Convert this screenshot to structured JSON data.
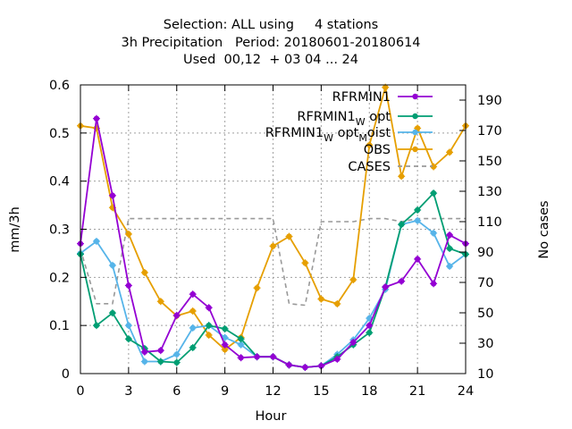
{
  "chart_data": {
    "type": "line",
    "title_lines": [
      "Selection: ALL using     4 stations",
      "3h Precipitation   Period: 20180601-20180614",
      "Used  00,12  + 03 04 ... 24"
    ],
    "xlabel": "Hour",
    "ylabel": "mm/3h",
    "y2label": "No cases",
    "xlim": [
      0,
      24
    ],
    "ylim": [
      0,
      0.6
    ],
    "y2lim": [
      10,
      200
    ],
    "x_ticks": [
      0,
      3,
      6,
      9,
      12,
      15,
      18,
      21,
      24
    ],
    "y_ticks": [
      "0",
      "0.1",
      "0.2",
      "0.3",
      "0.4",
      "0.5",
      "0.6"
    ],
    "y2_ticks": [
      "10",
      "30",
      "50",
      "70",
      "90",
      "110",
      "130",
      "150",
      "170",
      "190"
    ],
    "grid": true,
    "legend_position": "top-right",
    "x": [
      0,
      1,
      2,
      3,
      4,
      5,
      6,
      7,
      8,
      9,
      10,
      11,
      12,
      13,
      14,
      15,
      16,
      17,
      18,
      19,
      20,
      21,
      22,
      23,
      24
    ],
    "series": [
      {
        "name": "RFRMIN1",
        "legend_sub": "",
        "legend_tail": "",
        "color": "#9400d3",
        "axis": "y",
        "style": "line-points",
        "values": [
          0.27,
          0.53,
          0.37,
          0.183,
          0.045,
          0.048,
          0.121,
          0.165,
          0.137,
          0.06,
          0.033,
          0.035,
          0.035,
          0.018,
          0.013,
          0.016,
          0.03,
          0.065,
          0.1,
          0.18,
          0.192,
          0.238,
          0.187,
          0.288,
          0.27
        ]
      },
      {
        "name": "RFRMIN1",
        "legend_sub": "W",
        "legend_tail": "opt",
        "color": "#009e73",
        "axis": "y",
        "style": "line-points",
        "values": [
          0.248,
          0.1,
          0.126,
          0.072,
          0.052,
          0.025,
          0.023,
          0.054,
          0.1,
          0.093,
          0.072,
          0.035,
          0.035,
          0.018,
          0.013,
          0.016,
          0.035,
          0.06,
          0.085,
          0.18,
          0.31,
          0.34,
          0.375,
          0.26,
          0.248
        ]
      },
      {
        "name": "RFRMIN1",
        "legend_sub": "W",
        "legend_tail": "opt",
        "legend_sub2": "M",
        "legend_tail2": "oist",
        "color": "#56b4e9",
        "axis": "y",
        "style": "line-points",
        "values": [
          0.25,
          0.275,
          0.225,
          0.1,
          0.025,
          0.025,
          0.04,
          0.095,
          0.1,
          0.075,
          0.06,
          0.035,
          0.035,
          0.018,
          0.013,
          0.016,
          0.04,
          0.07,
          0.115,
          0.175,
          0.31,
          0.318,
          0.292,
          0.223,
          0.248
        ]
      },
      {
        "name": "OBS",
        "legend_sub": "",
        "legend_tail": "",
        "color": "#e69f00",
        "axis": "y",
        "style": "line-points",
        "values": [
          0.515,
          0.51,
          0.345,
          0.29,
          0.21,
          0.15,
          0.12,
          0.13,
          0.08,
          0.05,
          0.075,
          0.178,
          0.265,
          0.285,
          0.23,
          0.155,
          0.145,
          0.195,
          0.475,
          0.595,
          0.41,
          0.51,
          0.43,
          0.46,
          0.515
        ]
      },
      {
        "name": "CASES",
        "legend_sub": "",
        "legend_tail": "",
        "color": "#999999",
        "axis": "y2",
        "style": "dashed",
        "values": [
          92,
          56,
          56,
          112,
          112,
          112,
          112,
          112,
          112,
          112,
          112,
          112,
          112,
          56,
          55,
          110,
          110,
          110,
          112,
          112,
          110,
          112,
          112,
          112,
          112
        ]
      }
    ]
  }
}
